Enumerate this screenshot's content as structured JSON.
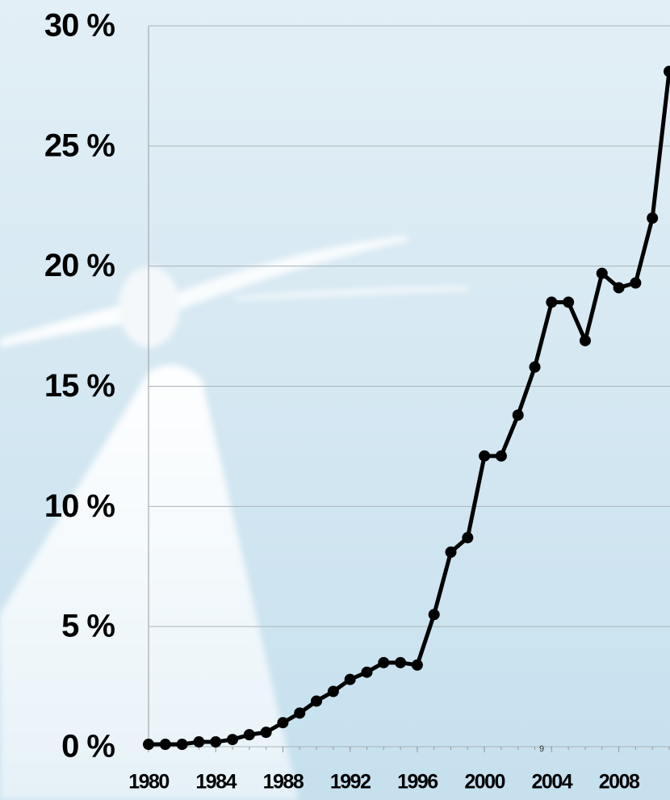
{
  "chart_data": {
    "type": "line",
    "x": [
      1980,
      1981,
      1982,
      1983,
      1984,
      1985,
      1986,
      1987,
      1988,
      1989,
      1990,
      1991,
      1992,
      1993,
      1994,
      1995,
      1996,
      1997,
      1998,
      1999,
      2000,
      2001,
      2002,
      2003,
      2004,
      2005,
      2006,
      2007,
      2008,
      2009,
      2010,
      2011
    ],
    "values": [
      0.1,
      0.1,
      0.1,
      0.2,
      0.2,
      0.3,
      0.5,
      0.6,
      1.0,
      1.4,
      1.9,
      2.3,
      2.8,
      3.1,
      3.5,
      3.5,
      3.4,
      5.5,
      8.1,
      8.7,
      12.1,
      12.1,
      13.8,
      15.8,
      18.5,
      18.5,
      16.9,
      19.7,
      19.1,
      19.3,
      22.0,
      28.1
    ],
    "color": "#000000",
    "xlim": [
      1980,
      2011
    ],
    "xticks": [
      1980,
      1984,
      1988,
      1992,
      1996,
      2000,
      2004,
      2008
    ],
    "ylim": [
      0,
      30
    ],
    "yticks": [
      {
        "value": 0,
        "label": "0 %"
      },
      {
        "value": 5,
        "label": "5 %"
      },
      {
        "value": 10,
        "label": "10 %"
      },
      {
        "value": 15,
        "label": "15 %"
      },
      {
        "value": 20,
        "label": "20 %"
      },
      {
        "value": 25,
        "label": "25 %"
      },
      {
        "value": 30,
        "label": "30 %"
      }
    ],
    "grid": true,
    "annotation": "9"
  }
}
